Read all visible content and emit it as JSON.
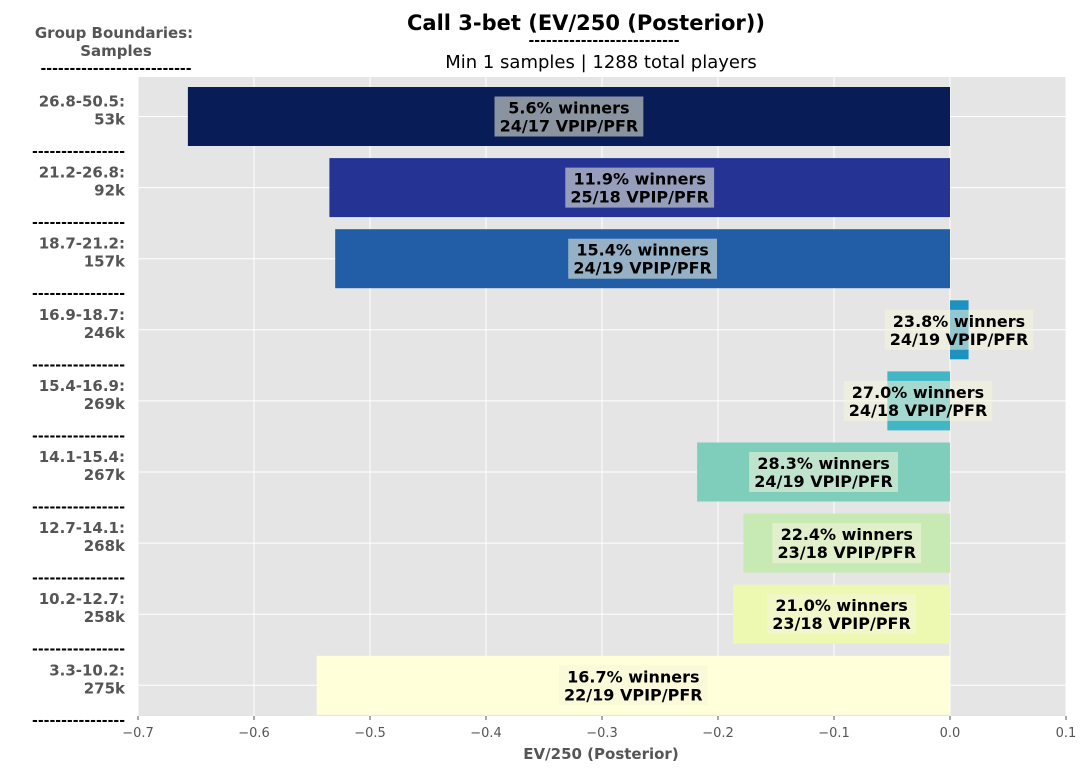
{
  "header": {
    "group_label_line1": "Group Boundaries:",
    "group_label_line2": "Samples",
    "group_label_rule": "--------------------------",
    "subtitle_rule": "--------------------------",
    "separator": "----------------"
  },
  "chart_data": {
    "type": "bar",
    "orientation": "horizontal",
    "title": "Call 3-bet (EV/250 (Posterior))",
    "subtitle": "Min 1 samples | 1288 total players",
    "xlabel": "EV/250 (Posterior)",
    "ylabel": "",
    "xlim": [
      -0.7,
      0.1
    ],
    "xticks": [
      -0.7,
      -0.6,
      -0.5,
      -0.4,
      -0.3,
      -0.2,
      -0.1,
      0.0,
      0.1
    ],
    "xtick_labels": [
      "−0.7",
      "−0.6",
      "−0.5",
      "−0.4",
      "−0.3",
      "−0.2",
      "−0.1",
      "0.0",
      "0.1"
    ],
    "grid": true,
    "bars": [
      {
        "group": "26.8-50.5:",
        "samples": "53k",
        "value": -0.657,
        "color": "#081d58",
        "winners": "5.6% winners",
        "vpip_pfr": "24/17 VPIP/PFR"
      },
      {
        "group": "21.2-26.8:",
        "samples": "92k",
        "value": -0.535,
        "color": "#253494",
        "winners": "11.9% winners",
        "vpip_pfr": "25/18 VPIP/PFR"
      },
      {
        "group": "18.7-21.2:",
        "samples": "157k",
        "value": -0.53,
        "color": "#225ea8",
        "winners": "15.4% winners",
        "vpip_pfr": "24/19 VPIP/PFR"
      },
      {
        "group": "16.9-18.7:",
        "samples": "246k",
        "value": 0.016,
        "color": "#1d91c0",
        "winners": "23.8% winners",
        "vpip_pfr": "24/19 VPIP/PFR"
      },
      {
        "group": "15.4-16.9:",
        "samples": "269k",
        "value": -0.054,
        "color": "#41b6c4",
        "winners": "27.0% winners",
        "vpip_pfr": "24/18 VPIP/PFR"
      },
      {
        "group": "14.1-15.4:",
        "samples": "267k",
        "value": -0.218,
        "color": "#7fcdbb",
        "winners": "28.3% winners",
        "vpip_pfr": "24/19 VPIP/PFR"
      },
      {
        "group": "12.7-14.1:",
        "samples": "268k",
        "value": -0.178,
        "color": "#c7e9b4",
        "winners": "22.4% winners",
        "vpip_pfr": "23/18 VPIP/PFR"
      },
      {
        "group": "10.2-12.7:",
        "samples": "258k",
        "value": -0.187,
        "color": "#edf8b1",
        "winners": "21.0% winners",
        "vpip_pfr": "23/18 VPIP/PFR"
      },
      {
        "group": "3.3-10.2:",
        "samples": "275k",
        "value": -0.546,
        "color": "#ffffd9",
        "winners": "16.7% winners",
        "vpip_pfr": "22/19 VPIP/PFR"
      }
    ]
  }
}
